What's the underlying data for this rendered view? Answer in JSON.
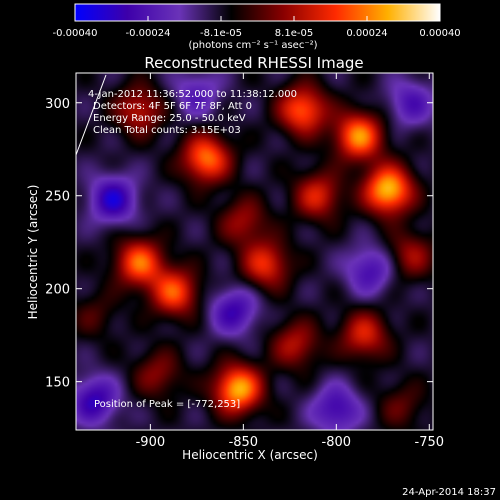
{
  "colorbar": {
    "tick_labels": [
      "-0.00040",
      "-0.00024",
      "-8.1e-05",
      "8.1e-05",
      "0.00024",
      "0.00040"
    ],
    "units_label": "(photons cm⁻² s⁻¹ asec⁻²)",
    "range": [
      -0.0004,
      0.0004
    ],
    "colors": [
      "#0000ff",
      "#3d00aa",
      "#6a33b8",
      "#000000",
      "#8a0000",
      "#ff2a00",
      "#ffb000",
      "#ffffff"
    ]
  },
  "chart_data": {
    "type": "heatmap",
    "title": "Reconstructed RHESSI Image",
    "xlabel": "Heliocentric X (arcsec)",
    "ylabel": "Heliocentric Y (arcsec)",
    "xlim": [
      -940,
      -748
    ],
    "ylim": [
      124,
      316
    ],
    "x_ticks": [
      -900,
      -850,
      -800,
      -750
    ],
    "y_ticks": [
      150,
      200,
      250,
      300
    ],
    "x_tick_labels": [
      "-900",
      "-850",
      "-800",
      "-750"
    ],
    "y_tick_labels": [
      "150",
      "200",
      "250",
      "300"
    ],
    "info_lines": [
      "4-Jan-2012 11:36:52.000 to 11:38:12.000",
      "Detectors: 4F 5F 6F 7F 8F, Att 0",
      "Energy Range: 25.0 - 50.0 keV",
      "Clean    Total counts: 3.15E+03"
    ],
    "peak_label": "Position of Peak = [-772,253]",
    "peak_position": [
      -772,
      253
    ],
    "sources": [
      {
        "x": -772,
        "y": 253,
        "value": 1.0
      },
      {
        "x": -853,
        "y": 146,
        "value": 0.95
      },
      {
        "x": -788,
        "y": 282,
        "value": 0.85
      },
      {
        "x": -870,
        "y": 270,
        "value": 0.8
      },
      {
        "x": -818,
        "y": 296,
        "value": 0.75
      },
      {
        "x": -906,
        "y": 214,
        "value": 0.75
      },
      {
        "x": -887,
        "y": 198,
        "value": 0.7
      },
      {
        "x": -838,
        "y": 213,
        "value": 0.6
      },
      {
        "x": -810,
        "y": 250,
        "value": 0.55
      },
      {
        "x": -785,
        "y": 175,
        "value": 0.55
      },
      {
        "x": -822,
        "y": 170,
        "value": 0.45
      },
      {
        "x": -906,
        "y": 296,
        "value": 0.5
      },
      {
        "x": -760,
        "y": 218,
        "value": 0.4
      },
      {
        "x": -850,
        "y": 236,
        "value": 0.4
      },
      {
        "x": -896,
        "y": 154,
        "value": 0.35
      },
      {
        "x": -765,
        "y": 137,
        "value": 0.25
      },
      {
        "x": -930,
        "y": 186,
        "value": 0.2
      },
      {
        "x": -920,
        "y": 248,
        "value": -0.6
      },
      {
        "x": -855,
        "y": 188,
        "value": -0.5
      },
      {
        "x": -782,
        "y": 210,
        "value": -0.45
      },
      {
        "x": -930,
        "y": 140,
        "value": -0.55
      },
      {
        "x": -800,
        "y": 135,
        "value": -0.5
      },
      {
        "x": -760,
        "y": 300,
        "value": -0.4
      },
      {
        "x": -875,
        "y": 305,
        "value": -0.35
      }
    ]
  },
  "footer": {
    "timestamp": "24-Apr-2014 18:37"
  }
}
